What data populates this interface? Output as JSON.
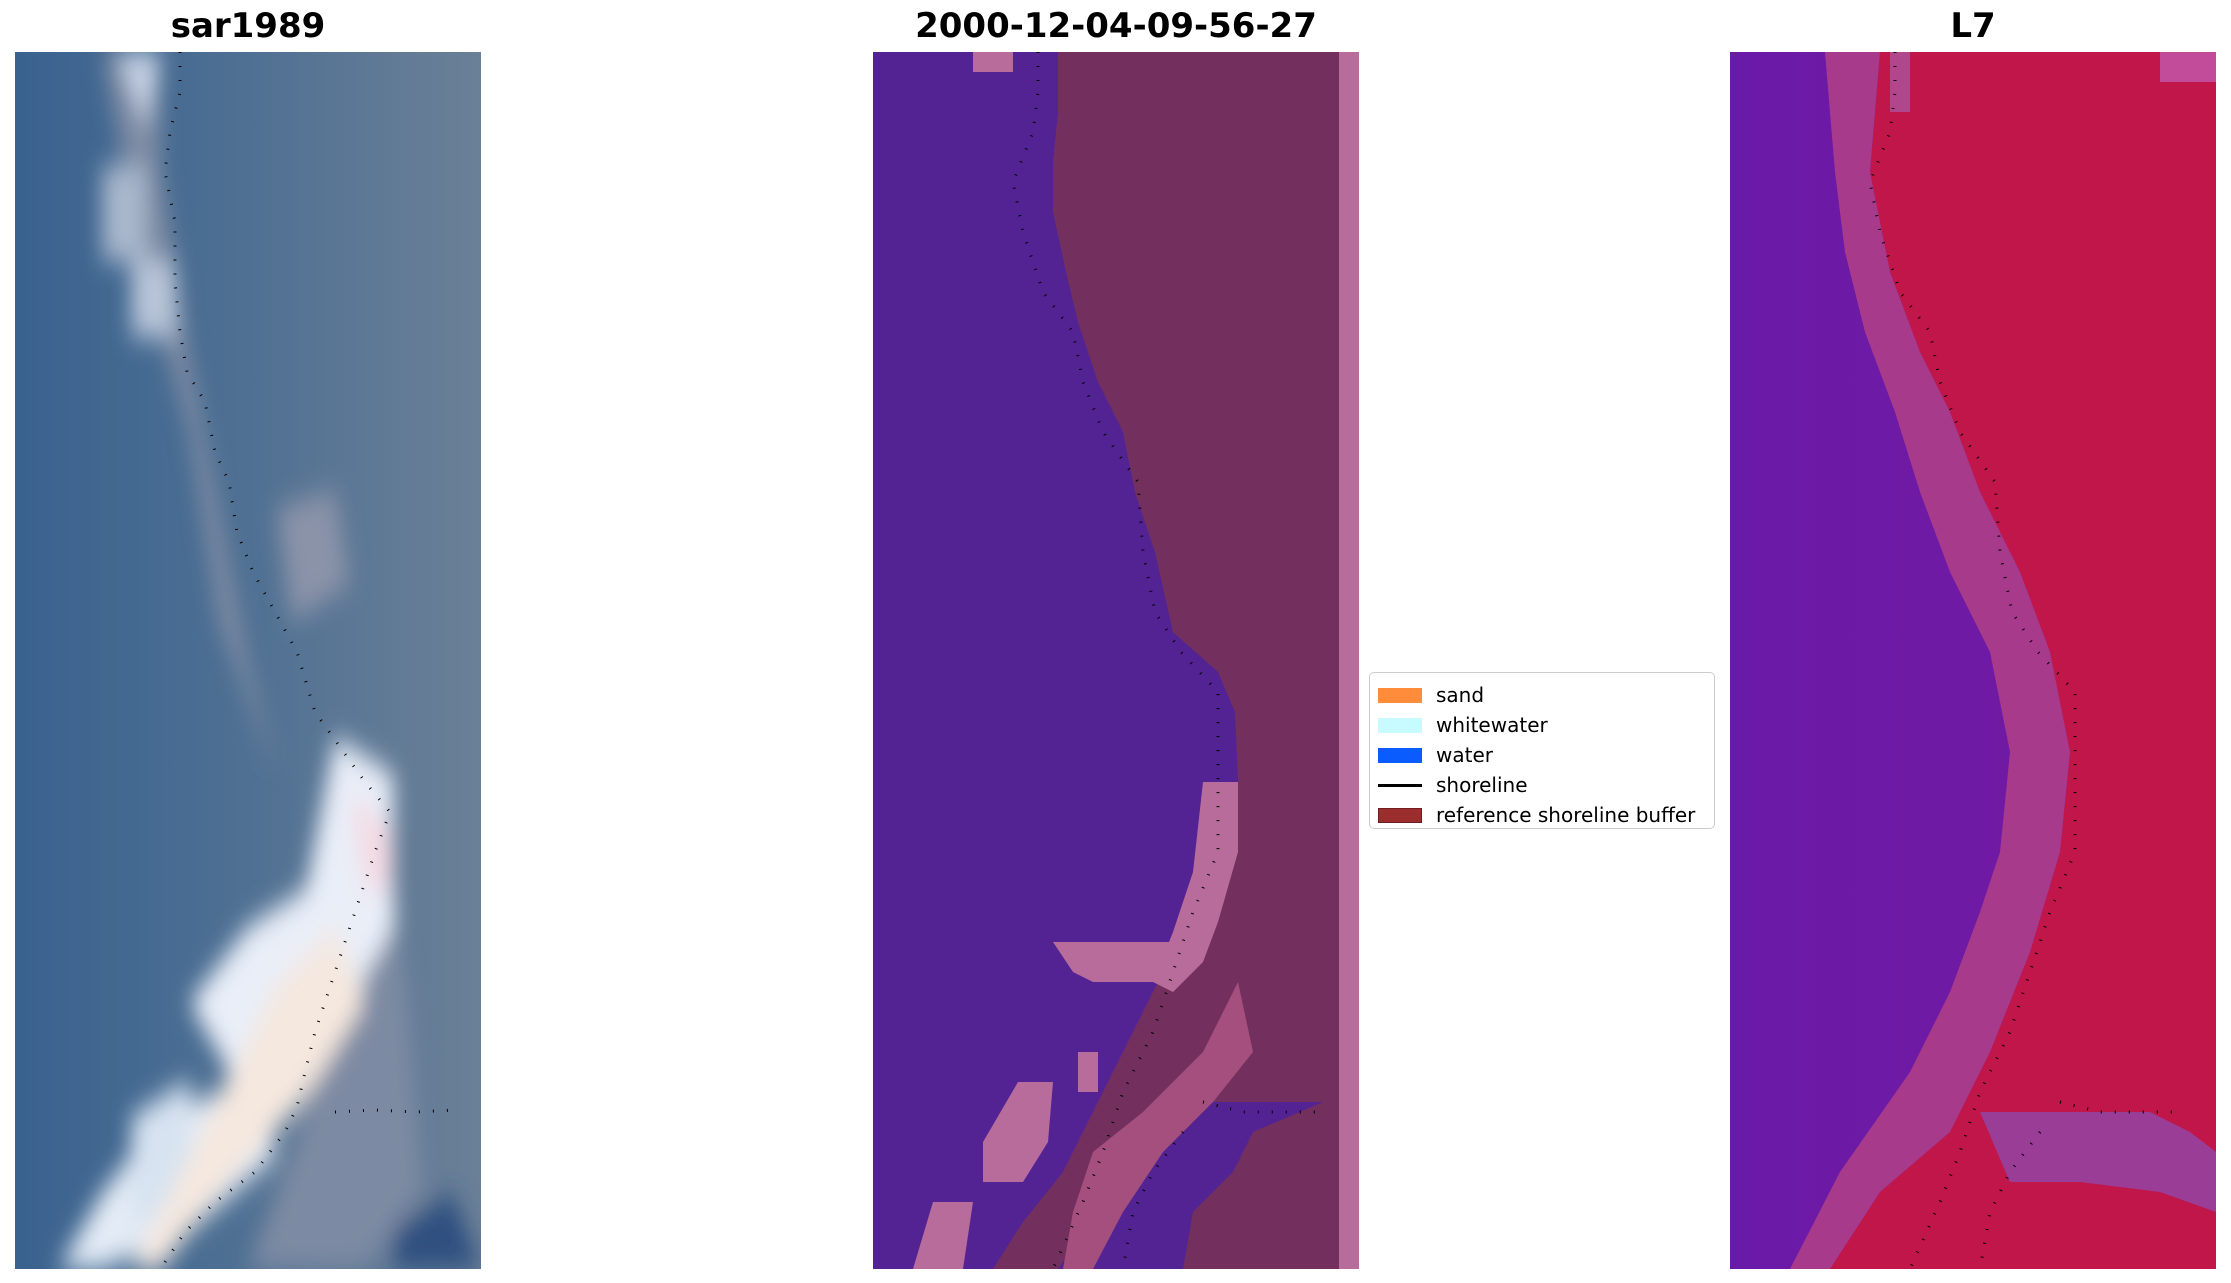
{
  "panels": [
    {
      "title": "sar1989"
    },
    {
      "title": "2000-12-04-09-56-27"
    },
    {
      "title": "L7"
    }
  ],
  "legend": {
    "items": [
      {
        "label": "sand",
        "color": "#ff8c3a",
        "kind": "patch"
      },
      {
        "label": "whitewater",
        "color": "#c8fbff",
        "kind": "patch"
      },
      {
        "label": "water",
        "color": "#0a5cff",
        "kind": "patch"
      },
      {
        "label": "shoreline",
        "color": "#000000",
        "kind": "line"
      },
      {
        "label": "reference shoreline buffer",
        "color": "#9b2d2d",
        "kind": "patch"
      }
    ]
  },
  "colors": {
    "rgb_water": "#3d6596",
    "rgb_land": "#5f7890",
    "rgb_sand": "#e6ecf4",
    "class_water": "#532394",
    "class_land": "#73305f",
    "class_pink": "#b76c9c",
    "index_low": "#6f14a4",
    "index_high": "#c01745"
  }
}
